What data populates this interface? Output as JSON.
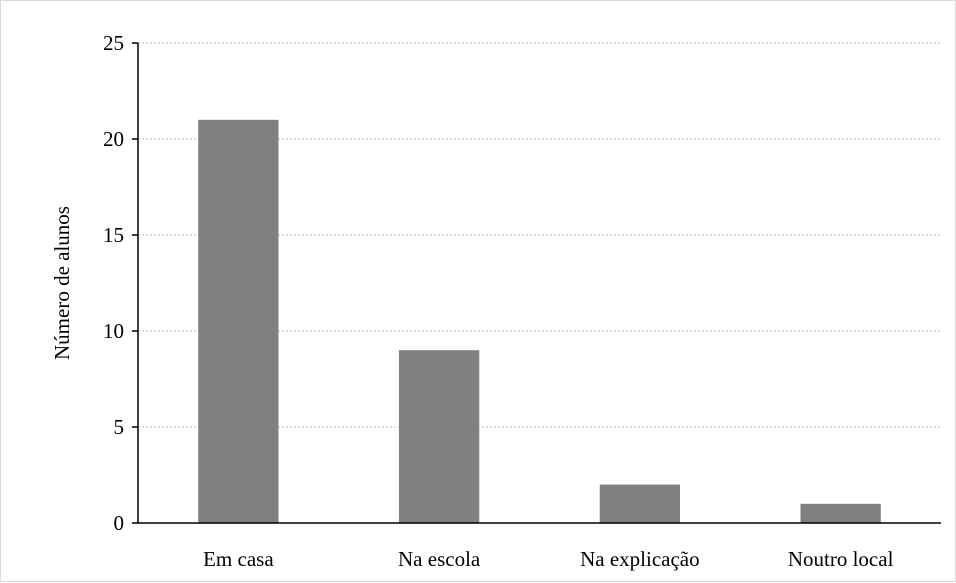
{
  "chart_data": {
    "type": "bar",
    "title": "",
    "xlabel": "",
    "ylabel": "Número de alunos",
    "categories": [
      "Em casa",
      "Na escola",
      "Na explicação",
      "Noutro local"
    ],
    "values": [
      21,
      9,
      2,
      1
    ],
    "ylim": [
      0,
      25
    ],
    "yticks": [
      0,
      5,
      10,
      15,
      20,
      25
    ],
    "grid": "horizontal-dotted",
    "legend": "none",
    "bar_color": "#808080"
  }
}
